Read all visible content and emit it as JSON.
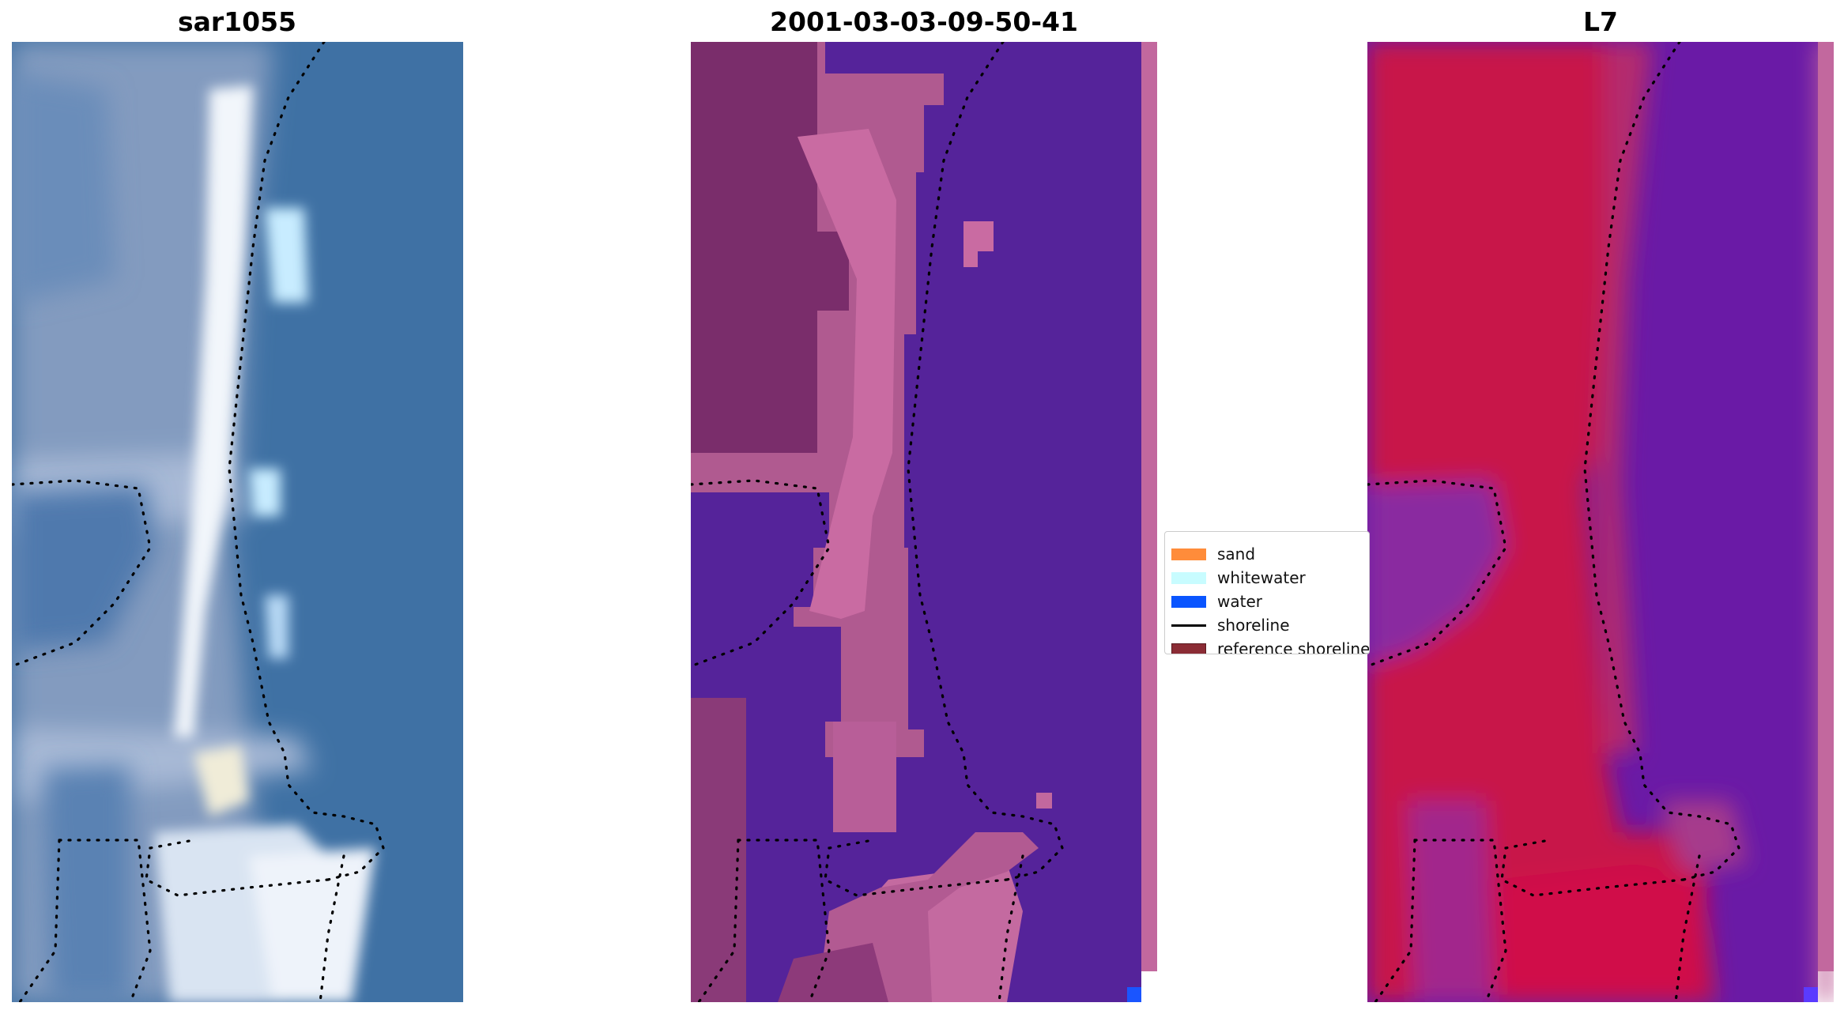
{
  "panels": {
    "rgb": {
      "title": "sar1055"
    },
    "classified": {
      "title": "2001-03-03-09-50-41"
    },
    "index": {
      "title": "L7"
    }
  },
  "legend": {
    "items": [
      {
        "label": "sand",
        "color": "#ff8c3a",
        "kind": "patch"
      },
      {
        "label": "whitewater",
        "color": "#c8fcff",
        "kind": "patch"
      },
      {
        "label": "water",
        "color": "#0a55ff",
        "kind": "patch"
      },
      {
        "label": "shoreline",
        "color": "#000000",
        "kind": "line"
      },
      {
        "label": "reference shoreline",
        "color": "#8b2c35",
        "kind": "patch"
      }
    ]
  },
  "colors": {
    "rgb_water": "#3f71a4",
    "rgb_land": "#8ea2c4",
    "rgb_white": "#f2f6fb",
    "cls_water": "#55239a",
    "cls_land_dark": "#7a2d6b",
    "cls_land": "#c2689e",
    "idx_land": "#c8124a",
    "idx_water": "#6a1aa6",
    "idx_mid": "#a63a8c"
  }
}
